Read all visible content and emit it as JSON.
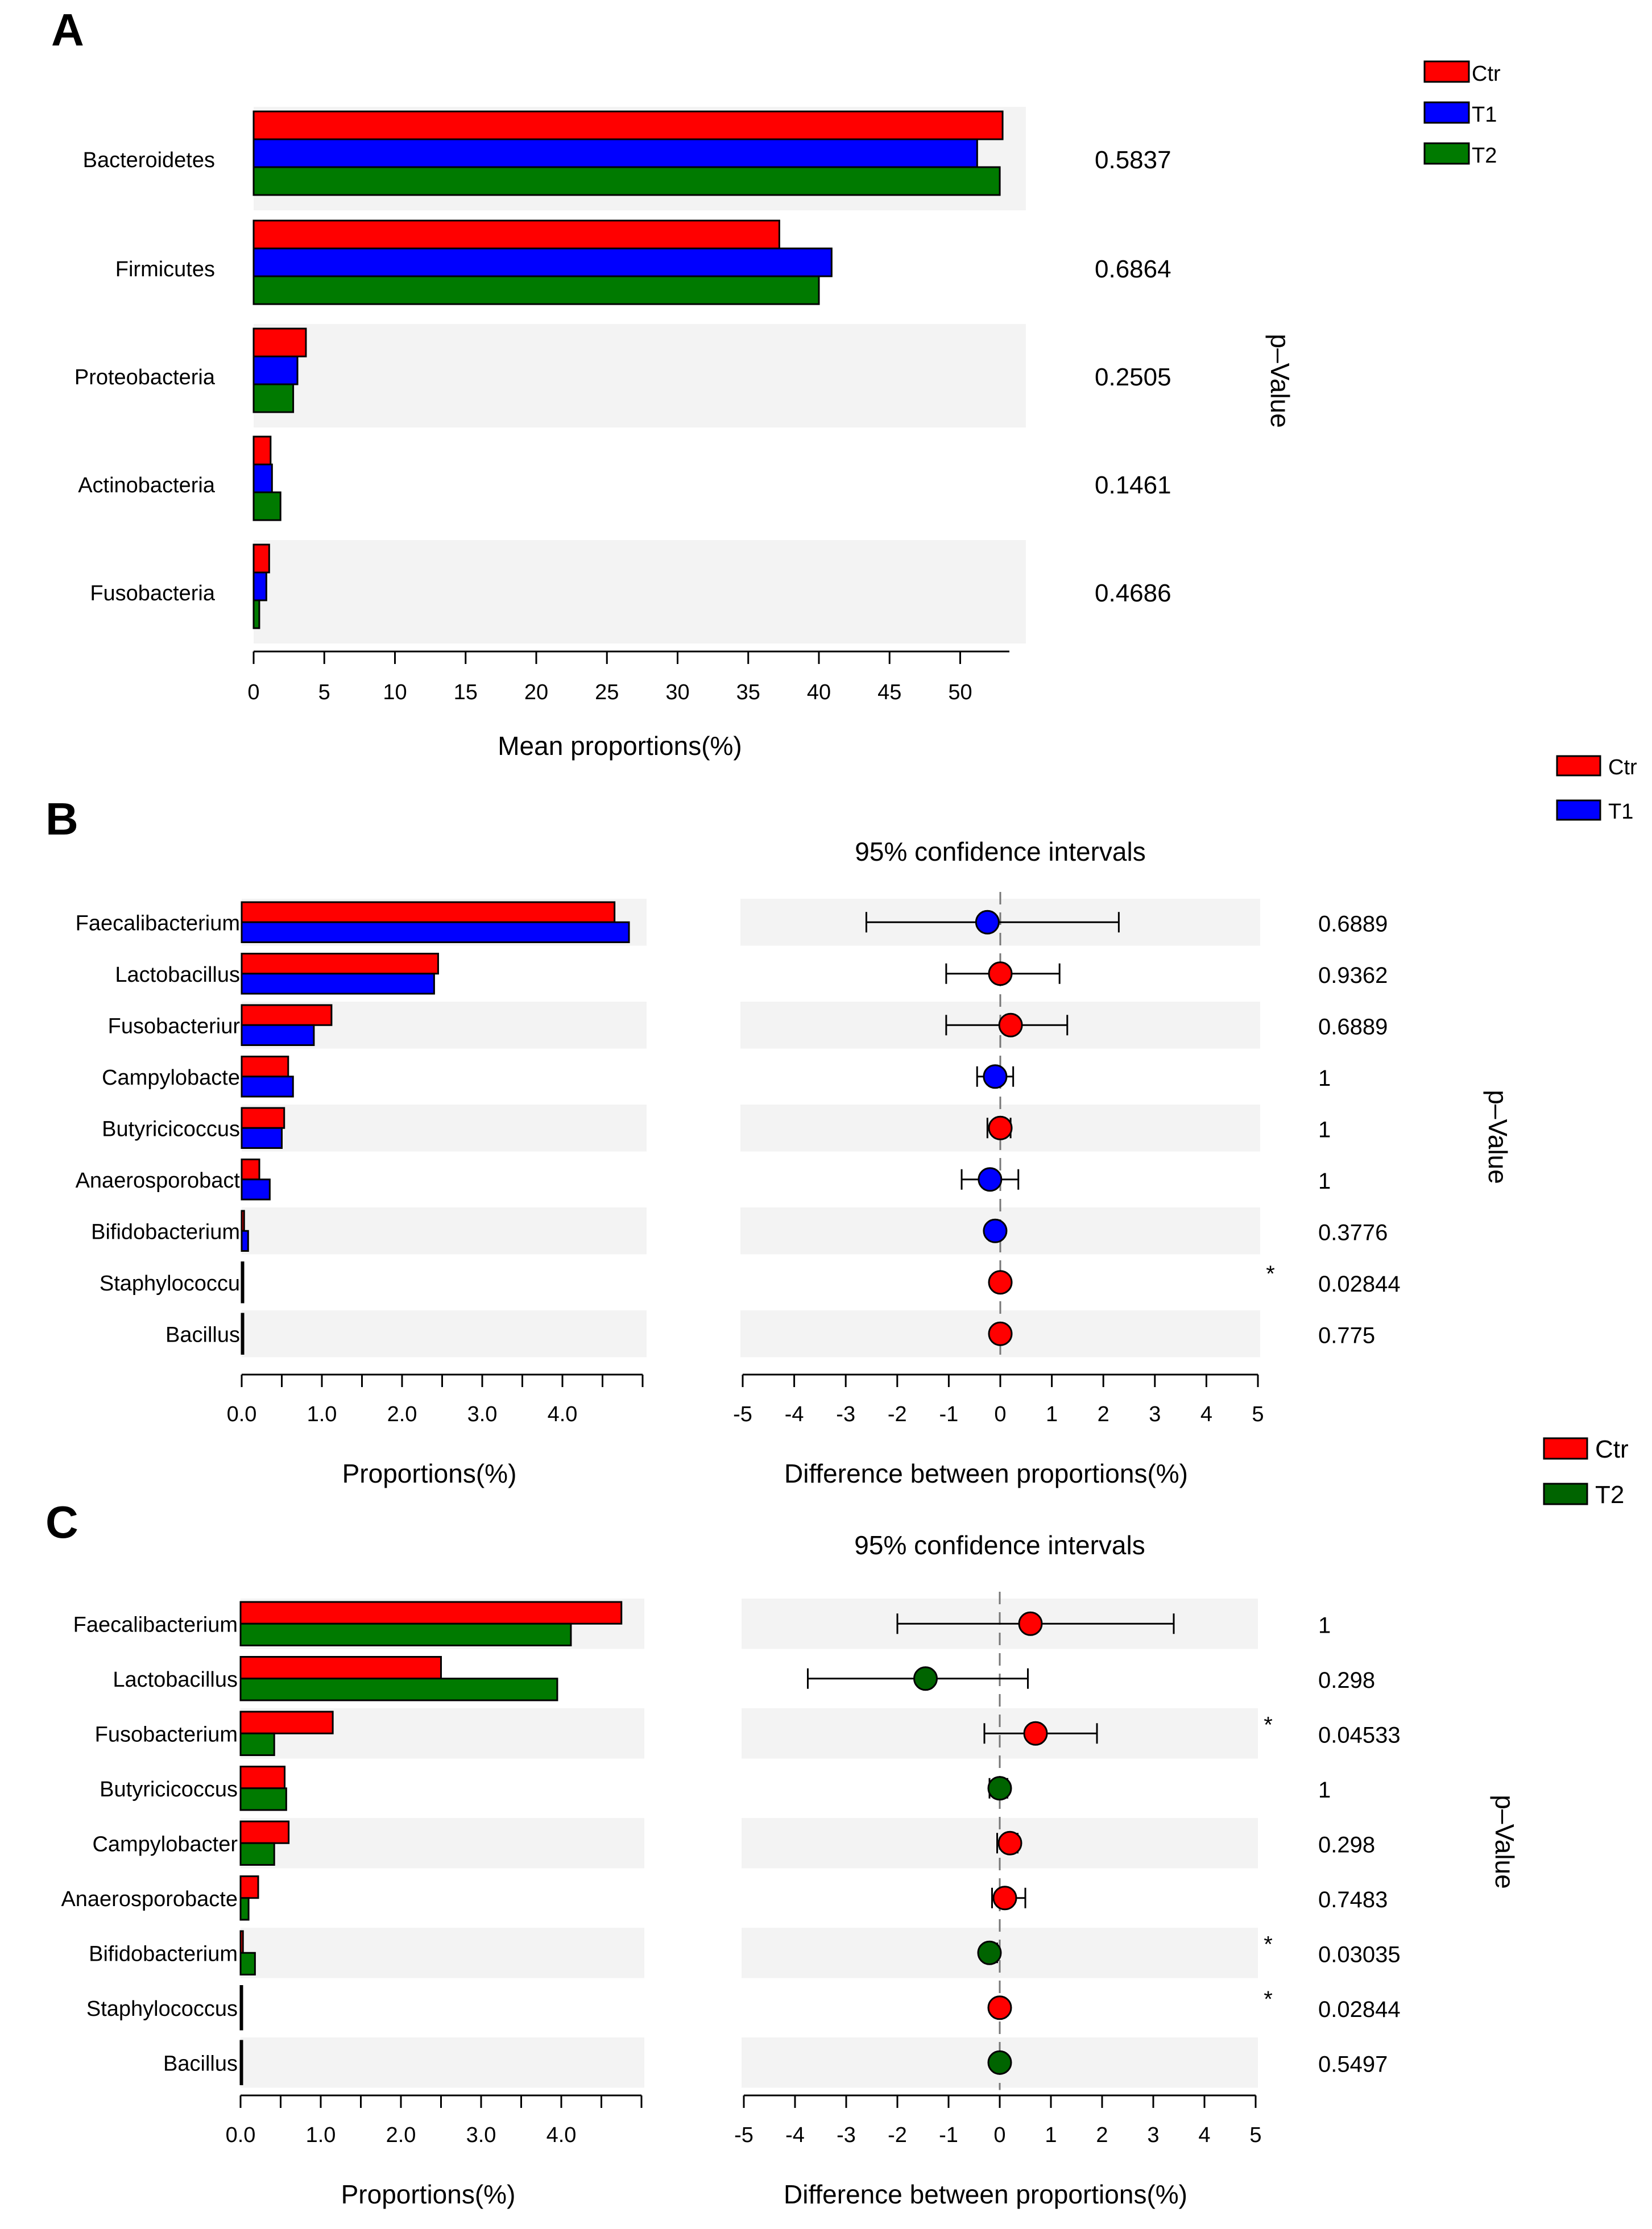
{
  "colors": {
    "ctr": "#ff0000",
    "t1": "#0000ff",
    "t2": "#007a00",
    "t2_dark": "#006400",
    "band": "#f3f3f3",
    "star": "#e05050"
  },
  "chart_data": [
    {
      "panel": "A",
      "type": "bar",
      "orientation": "horizontal",
      "categories": [
        "Bacteroidetes",
        "Firmicutes",
        "Proteobacteria",
        "Actinobacteria",
        "Fusobacteria"
      ],
      "series": [
        {
          "name": "Ctr",
          "values": [
            53.0,
            37.2,
            3.7,
            1.2,
            1.1
          ]
        },
        {
          "name": "T1",
          "values": [
            51.2,
            40.9,
            3.1,
            1.3,
            0.9
          ]
        },
        {
          "name": "T2",
          "values": [
            52.8,
            40.0,
            2.8,
            1.9,
            0.4
          ]
        }
      ],
      "p_values": [
        "0.5837",
        "0.6864",
        "0.2505",
        "0.1461",
        "0.4686"
      ],
      "xlabel": "Mean proportions(%)",
      "p_label": "p–Value",
      "xlim": [
        0,
        53.5
      ],
      "xticks": [
        "0",
        "5",
        "10",
        "15",
        "20",
        "25",
        "30",
        "35",
        "40",
        "45",
        "50"
      ],
      "legend": [
        "Ctr",
        "T1",
        "T2"
      ],
      "legend_position": "top-right"
    },
    {
      "panel": "B",
      "type": "bar",
      "orientation": "horizontal",
      "categories": [
        "Faecalibacterium",
        "Lactobacillus",
        "Fusobacteriur",
        "Campylobacte",
        "Butyricicoccus",
        "Anaerosporobact",
        "Bifidobacterium",
        "Staphylococcu",
        "Bacillus"
      ],
      "series": [
        {
          "name": "Ctr",
          "values": [
            4.65,
            2.45,
            1.12,
            0.58,
            0.53,
            0.22,
            0.03,
            0.02,
            0.01
          ]
        },
        {
          "name": "T1",
          "values": [
            4.83,
            2.4,
            0.9,
            0.64,
            0.5,
            0.35,
            0.08,
            0.0,
            0.01
          ]
        }
      ],
      "prop_xlabel": "Proportions(%)",
      "prop_xlim": [
        0,
        5.0
      ],
      "prop_xticks": [
        "0.0",
        "1.0",
        "2.0",
        "3.0",
        "4.0"
      ],
      "ci_title": "95% confidence intervals",
      "ci_xlabel": "Difference between proportions(%)",
      "ci_xticks": [
        "-5",
        "-4",
        "-3",
        "-2",
        "-1",
        "0",
        "1",
        "2",
        "3",
        "4",
        "5"
      ],
      "ci_xlim": [
        -5,
        5
      ],
      "differences": [
        {
          "mean": -0.25,
          "low": -2.6,
          "high": 2.3,
          "group": "T1"
        },
        {
          "mean": 0.0,
          "low": -1.05,
          "high": 1.15,
          "group": "Ctr"
        },
        {
          "mean": 0.2,
          "low": -1.05,
          "high": 1.3,
          "group": "Ctr"
        },
        {
          "mean": -0.1,
          "low": -0.45,
          "high": 0.25,
          "group": "T1"
        },
        {
          "mean": 0.0,
          "low": -0.25,
          "high": 0.2,
          "group": "Ctr"
        },
        {
          "mean": -0.2,
          "low": -0.75,
          "high": 0.35,
          "group": "T1"
        },
        {
          "mean": -0.1,
          "low": -0.15,
          "high": 0.0,
          "group": "T1"
        },
        {
          "mean": 0.0,
          "low": -0.05,
          "high": 0.05,
          "group": "Ctr"
        },
        {
          "mean": 0.0,
          "low": -0.05,
          "high": 0.05,
          "group": "Ctr"
        }
      ],
      "p_values": [
        "0.6889",
        "0.9362",
        "0.6889",
        "1",
        "1",
        "1",
        "0.3776",
        "0.02844",
        "0.775"
      ],
      "significant": [
        false,
        false,
        false,
        false,
        false,
        false,
        false,
        true,
        false
      ],
      "star": "*",
      "p_label": "p–Value",
      "legend": [
        "Ctr",
        "T1"
      ],
      "legend_position": "top-right"
    },
    {
      "panel": "C",
      "type": "bar",
      "orientation": "horizontal",
      "categories": [
        "Faecalibacterium",
        "Lactobacillus",
        "Fusobacterium",
        "Butyricicoccus",
        "Campylobacter",
        "Anaerosporobacte",
        "Bifidobacterium",
        "Staphylococcus",
        "Bacillus"
      ],
      "series": [
        {
          "name": "Ctr",
          "values": [
            4.75,
            2.5,
            1.15,
            0.55,
            0.6,
            0.22,
            0.03,
            0.02,
            0.01
          ]
        },
        {
          "name": "T2",
          "values": [
            4.12,
            3.95,
            0.42,
            0.57,
            0.42,
            0.1,
            0.18,
            0.0,
            0.01
          ]
        }
      ],
      "prop_xlabel": "Proportions(%)",
      "prop_xlim": [
        0,
        5.0
      ],
      "prop_xticks": [
        "0.0",
        "1.0",
        "2.0",
        "3.0",
        "4.0"
      ],
      "ci_title": "95% confidence intervals",
      "ci_xlabel": "Difference between proportions(%)",
      "ci_xticks": [
        "-5",
        "-4",
        "-3",
        "-2",
        "-1",
        "0",
        "1",
        "2",
        "3",
        "4",
        "5"
      ],
      "ci_xlim": [
        -5,
        5
      ],
      "differences": [
        {
          "mean": 0.6,
          "low": -2.0,
          "high": 3.4,
          "group": "Ctr"
        },
        {
          "mean": -1.45,
          "low": -3.75,
          "high": 0.55,
          "group": "T2"
        },
        {
          "mean": 0.7,
          "low": -0.3,
          "high": 1.9,
          "group": "Ctr"
        },
        {
          "mean": 0.0,
          "low": -0.2,
          "high": 0.15,
          "group": "T2"
        },
        {
          "mean": 0.2,
          "low": -0.05,
          "high": 0.35,
          "group": "Ctr"
        },
        {
          "mean": 0.1,
          "low": -0.15,
          "high": 0.5,
          "group": "Ctr"
        },
        {
          "mean": -0.2,
          "low": -0.3,
          "high": -0.05,
          "group": "T2"
        },
        {
          "mean": 0.0,
          "low": -0.05,
          "high": 0.05,
          "group": "Ctr"
        },
        {
          "mean": 0.0,
          "low": -0.05,
          "high": 0.05,
          "group": "T2"
        }
      ],
      "p_values": [
        "1",
        "0.298",
        "0.04533",
        "1",
        "0.298",
        "0.7483",
        "0.03035",
        "0.02844",
        "0.5497"
      ],
      "significant": [
        false,
        false,
        true,
        false,
        false,
        false,
        true,
        true,
        false
      ],
      "star": "*",
      "p_label": "p–Value",
      "legend": [
        "Ctr",
        "T2"
      ],
      "legend_position": "top-right"
    }
  ]
}
